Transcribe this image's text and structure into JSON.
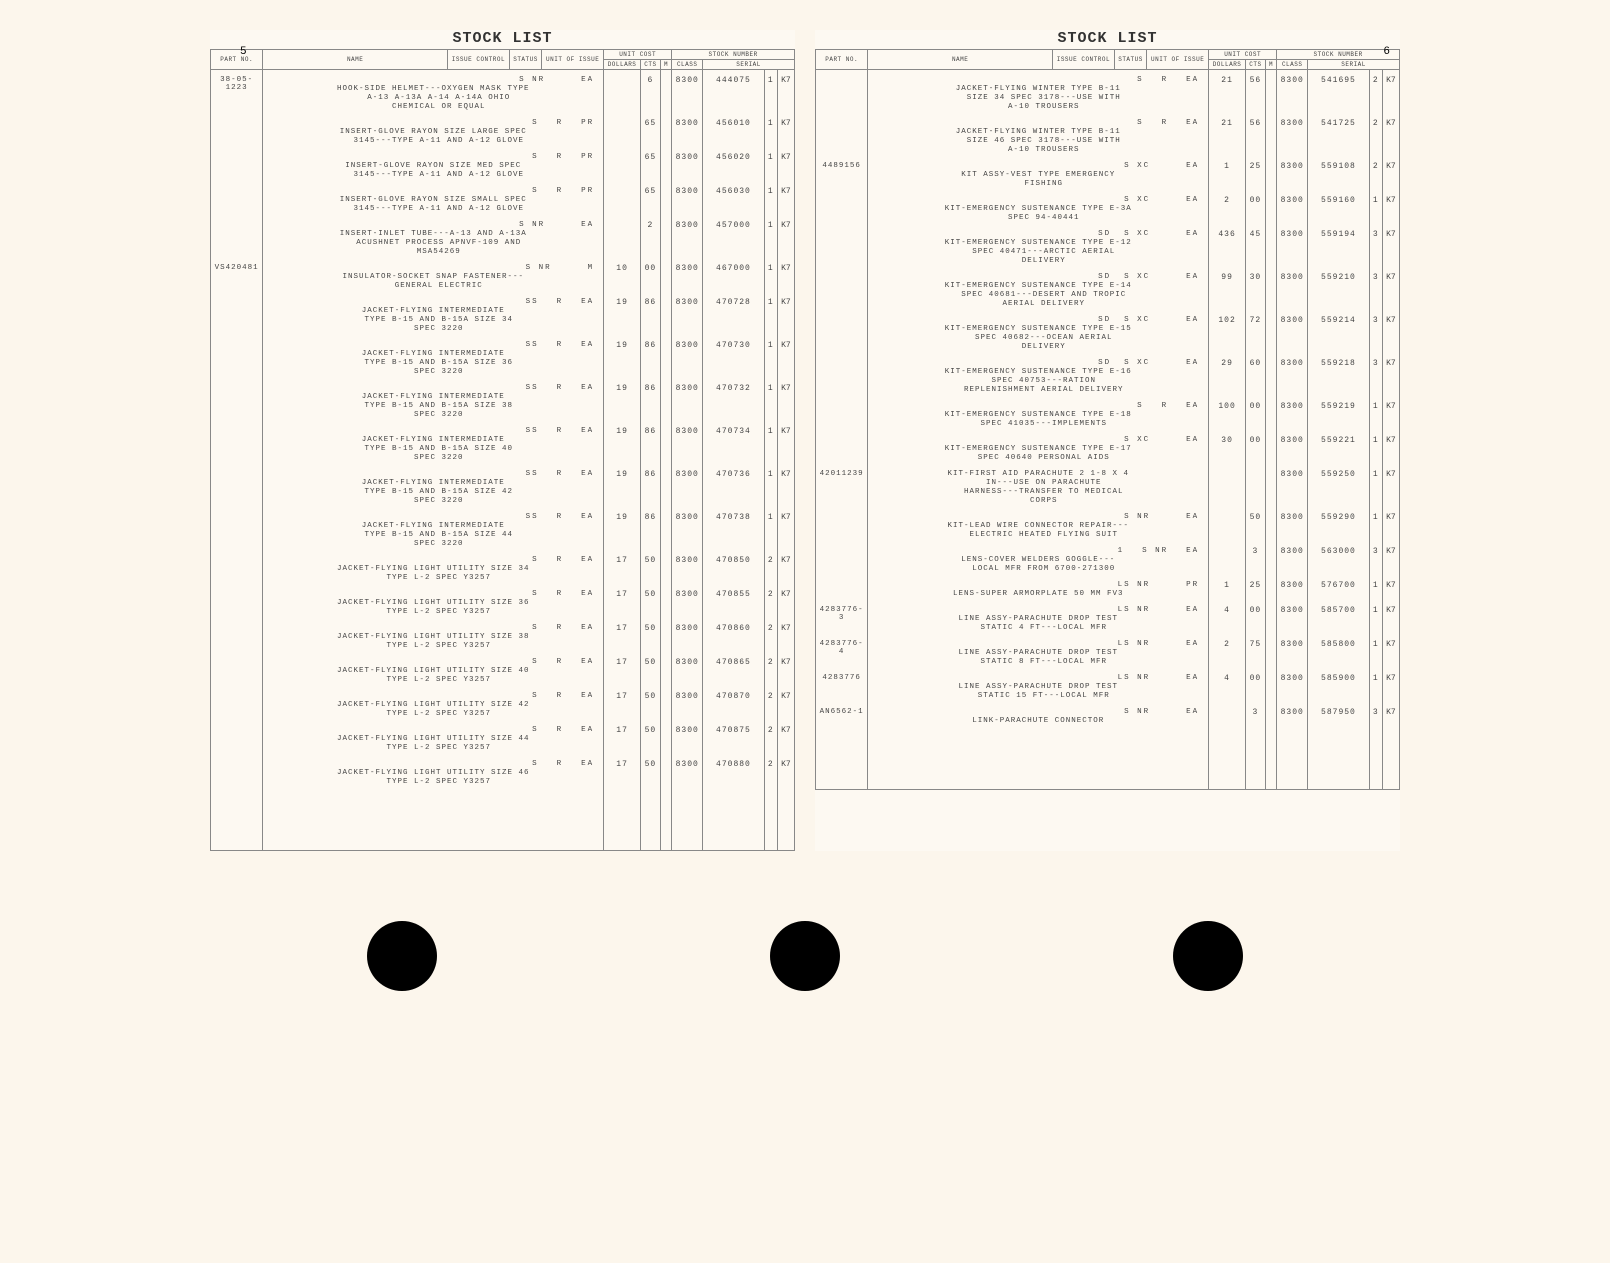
{
  "title": "STOCK LIST",
  "headers": {
    "part_no": "PART NO.",
    "name": "NAME",
    "issue": "ISSUE CONTROL",
    "status": "STATUS",
    "unit": "UNIT OF ISSUE",
    "unit_cost": "UNIT COST",
    "dollars": "DOLLARS",
    "cts": "CTS",
    "m": "M",
    "stock_number": "STOCK NUMBER",
    "class": "CLASS",
    "serial": "SERIAL"
  },
  "pages": [
    {
      "num": "5",
      "num_side": "left",
      "rows": [
        {
          "part": "38-05-1223",
          "codes": [
            "S NR",
            "",
            "EA"
          ],
          "name": "HOOK-SIDE HELMET---OXYGEN MASK TYPE\n  A-13 A-13A A-14 A-14A OHIO\n  CHEMICAL OR EQUAL",
          "dol": "",
          "cts": "6",
          "class": "8300",
          "serial": "444075",
          "x1": "1",
          "x2": "K7"
        },
        {
          "part": "",
          "codes": [
            "S",
            "R",
            "PR"
          ],
          "name": "INSERT-GLOVE RAYON SIZE LARGE SPEC\n  3145---TYPE A-11 AND A-12 GLOVE",
          "dol": "",
          "cts": "65",
          "class": "8300",
          "serial": "456010",
          "x1": "1",
          "x2": "K7"
        },
        {
          "part": "",
          "codes": [
            "S",
            "R",
            "PR"
          ],
          "name": "INSERT-GLOVE RAYON SIZE MED SPEC\n  3145---TYPE A-11 AND A-12 GLOVE",
          "dol": "",
          "cts": "65",
          "class": "8300",
          "serial": "456020",
          "x1": "1",
          "x2": "K7"
        },
        {
          "part": "",
          "codes": [
            "S",
            "R",
            "PR"
          ],
          "name": "INSERT-GLOVE RAYON SIZE SMALL SPEC\n  3145---TYPE A-11 AND A-12 GLOVE",
          "dol": "",
          "cts": "65",
          "class": "8300",
          "serial": "456030",
          "x1": "1",
          "x2": "K7"
        },
        {
          "part": "",
          "codes": [
            "S NR",
            "",
            "EA"
          ],
          "name": "INSERT-INLET TUBE---A-13 AND A-13A\n  ACUSHNET PROCESS APNVF-109 AND\n  MSA54269",
          "dol": "",
          "cts": "2",
          "class": "8300",
          "serial": "457000",
          "x1": "1",
          "x2": "K7"
        },
        {
          "part": "VS420481",
          "codes": [
            "S NR",
            "",
            "M"
          ],
          "name": "INSULATOR-SOCKET SNAP FASTENER---\n  GENERAL ELECTRIC",
          "dol": "10",
          "cts": "00",
          "class": "8300",
          "serial": "467000",
          "x1": "1",
          "x2": "K7"
        },
        {
          "part": "",
          "codes": [
            "SS",
            "R",
            "EA"
          ],
          "name": "JACKET-FLYING INTERMEDIATE\n  TYPE B-15 AND B-15A SIZE 34\n  SPEC 3220",
          "dol": "19",
          "cts": "86",
          "class": "8300",
          "serial": "470728",
          "x1": "1",
          "x2": "K7"
        },
        {
          "part": "",
          "codes": [
            "SS",
            "R",
            "EA"
          ],
          "name": "JACKET-FLYING INTERMEDIATE\n  TYPE B-15 AND B-15A SIZE 36\n  SPEC 3220",
          "dol": "19",
          "cts": "86",
          "class": "8300",
          "serial": "470730",
          "x1": "1",
          "x2": "K7"
        },
        {
          "part": "",
          "codes": [
            "SS",
            "R",
            "EA"
          ],
          "name": "JACKET-FLYING INTERMEDIATE\n  TYPE B-15 AND B-15A SIZE 38\n  SPEC 3220",
          "dol": "19",
          "cts": "86",
          "class": "8300",
          "serial": "470732",
          "x1": "1",
          "x2": "K7"
        },
        {
          "part": "",
          "codes": [
            "SS",
            "R",
            "EA"
          ],
          "name": "JACKET-FLYING INTERMEDIATE\n  TYPE B-15 AND B-15A SIZE 40\n  SPEC 3220",
          "dol": "19",
          "cts": "86",
          "class": "8300",
          "serial": "470734",
          "x1": "1",
          "x2": "K7"
        },
        {
          "part": "",
          "codes": [
            "SS",
            "R",
            "EA"
          ],
          "name": "JACKET-FLYING INTERMEDIATE\n  TYPE B-15 AND B-15A SIZE 42\n  SPEC 3220",
          "dol": "19",
          "cts": "86",
          "class": "8300",
          "serial": "470736",
          "x1": "1",
          "x2": "K7"
        },
        {
          "part": "",
          "codes": [
            "SS",
            "R",
            "EA"
          ],
          "name": "JACKET-FLYING INTERMEDIATE\n  TYPE B-15 AND B-15A SIZE 44\n  SPEC 3220",
          "dol": "19",
          "cts": "86",
          "class": "8300",
          "serial": "470738",
          "x1": "1",
          "x2": "K7"
        },
        {
          "part": "",
          "codes": [
            "S",
            "R",
            "EA"
          ],
          "name": "JACKET-FLYING LIGHT UTILITY SIZE 34\n  TYPE L-2 SPEC Y3257",
          "dol": "17",
          "cts": "50",
          "class": "8300",
          "serial": "470850",
          "x1": "2",
          "x2": "K7"
        },
        {
          "part": "",
          "codes": [
            "S",
            "R",
            "EA"
          ],
          "name": "JACKET-FLYING LIGHT UTILITY SIZE 36\n  TYPE L-2 SPEC Y3257",
          "dol": "17",
          "cts": "50",
          "class": "8300",
          "serial": "470855",
          "x1": "2",
          "x2": "K7"
        },
        {
          "part": "",
          "codes": [
            "S",
            "R",
            "EA"
          ],
          "name": "JACKET-FLYING LIGHT UTILITY SIZE 38\n  TYPE L-2 SPEC Y3257",
          "dol": "17",
          "cts": "50",
          "class": "8300",
          "serial": "470860",
          "x1": "2",
          "x2": "K7"
        },
        {
          "part": "",
          "codes": [
            "S",
            "R",
            "EA"
          ],
          "name": "JACKET-FLYING LIGHT UTILITY SIZE 40\n  TYPE L-2 SPEC Y3257",
          "dol": "17",
          "cts": "50",
          "class": "8300",
          "serial": "470865",
          "x1": "2",
          "x2": "K7"
        },
        {
          "part": "",
          "codes": [
            "S",
            "R",
            "EA"
          ],
          "name": "JACKET-FLYING LIGHT UTILITY SIZE 42\n  TYPE L-2 SPEC Y3257",
          "dol": "17",
          "cts": "50",
          "class": "8300",
          "serial": "470870",
          "x1": "2",
          "x2": "K7"
        },
        {
          "part": "",
          "codes": [
            "S",
            "R",
            "EA"
          ],
          "name": "JACKET-FLYING LIGHT UTILITY SIZE 44\n  TYPE L-2 SPEC Y3257",
          "dol": "17",
          "cts": "50",
          "class": "8300",
          "serial": "470875",
          "x1": "2",
          "x2": "K7"
        },
        {
          "part": "",
          "codes": [
            "S",
            "R",
            "EA"
          ],
          "name": "JACKET-FLYING LIGHT UTILITY SIZE 46\n  TYPE L-2 SPEC Y3257",
          "dol": "17",
          "cts": "50",
          "class": "8300",
          "serial": "470880",
          "x1": "2",
          "x2": "K7"
        }
      ]
    },
    {
      "num": "6",
      "num_side": "right",
      "rows": [
        {
          "part": "",
          "codes": [
            "S",
            "R",
            "EA"
          ],
          "name": "JACKET-FLYING WINTER TYPE B-11\n  SIZE 34 SPEC 3178---USE WITH\n  A-10 TROUSERS",
          "dol": "21",
          "cts": "56",
          "class": "8300",
          "serial": "541695",
          "x1": "2",
          "x2": "K7"
        },
        {
          "part": "",
          "codes": [
            "S",
            "R",
            "EA"
          ],
          "name": "JACKET-FLYING WINTER TYPE B-11\n  SIZE 46 SPEC 3178---USE WITH\n  A-10 TROUSERS",
          "dol": "21",
          "cts": "56",
          "class": "8300",
          "serial": "541725",
          "x1": "2",
          "x2": "K7"
        },
        {
          "part": "4489156",
          "codes": [
            "S XC",
            "",
            "EA"
          ],
          "name": "KIT ASSY-VEST TYPE EMERGENCY\n  FISHING",
          "dol": "1",
          "cts": "25",
          "class": "8300",
          "serial": "559108",
          "x1": "2",
          "x2": "K7"
        },
        {
          "part": "",
          "codes": [
            "S XC",
            "",
            "EA"
          ],
          "name": "KIT-EMERGENCY SUSTENANCE TYPE E-3A\n  SPEC 94-40441",
          "dol": "2",
          "cts": "00",
          "class": "8300",
          "serial": "559160",
          "x1": "1",
          "x2": "K7"
        },
        {
          "part": "",
          "codes": [
            "SD  S XC",
            "",
            "EA"
          ],
          "name": "KIT-EMERGENCY SUSTENANCE TYPE E-12\n  SPEC 40471---ARCTIC AERIAL\n  DELIVERY",
          "dol": "436",
          "cts": "45",
          "class": "8300",
          "serial": "559194",
          "x1": "3",
          "x2": "K7"
        },
        {
          "part": "",
          "codes": [
            "SD  S XC",
            "",
            "EA"
          ],
          "name": "KIT-EMERGENCY SUSTENANCE TYPE E-14\n  SPEC 40681---DESERT AND TROPIC\n  AERIAL DELIVERY",
          "dol": "99",
          "cts": "30",
          "class": "8300",
          "serial": "559210",
          "x1": "3",
          "x2": "K7"
        },
        {
          "part": "",
          "codes": [
            "SD  S XC",
            "",
            "EA"
          ],
          "name": "KIT-EMERGENCY SUSTENANCE TYPE E-15\n  SPEC 40682---OCEAN AERIAL\n  DELIVERY",
          "dol": "102",
          "cts": "72",
          "class": "8300",
          "serial": "559214",
          "x1": "3",
          "x2": "K7"
        },
        {
          "part": "",
          "codes": [
            "SD  S XC",
            "",
            "EA"
          ],
          "name": "KIT-EMERGENCY SUSTENANCE TYPE E-16\n  SPEC 40753---RATION\n  REPLENISHMENT AERIAL DELIVERY",
          "dol": "29",
          "cts": "60",
          "class": "8300",
          "serial": "559218",
          "x1": "3",
          "x2": "K7"
        },
        {
          "part": "",
          "codes": [
            "S",
            "R",
            "EA"
          ],
          "name": "KIT-EMERGENCY SUSTENANCE TYPE E-18\n  SPEC 41035---IMPLEMENTS",
          "dol": "100",
          "cts": "00",
          "class": "8300",
          "serial": "559219",
          "x1": "1",
          "x2": "K7"
        },
        {
          "part": "",
          "codes": [
            "S XC",
            "",
            "EA"
          ],
          "name": "KIT-EMERGENCY SUSTENANCE TYPE E-17\n  SPEC 40640 PERSONAL AIDS",
          "dol": "30",
          "cts": "00",
          "class": "8300",
          "serial": "559221",
          "x1": "1",
          "x2": "K7"
        },
        {
          "part": "42011239",
          "codes": [
            "",
            "",
            ""
          ],
          "name": "KIT-FIRST AID PARACHUTE 2 1-8 X 4\n  IN---USE ON PARACHUTE\n  HARNESS---TRANSFER TO MEDICAL\n  CORPS",
          "dol": "",
          "cts": "",
          "class": "8300",
          "serial": "559250",
          "x1": "1",
          "x2": "K7"
        },
        {
          "part": "",
          "codes": [
            "S NR",
            "",
            "EA"
          ],
          "name": "KIT-LEAD WIRE CONNECTOR REPAIR---\n  ELECTRIC HEATED FLYING SUIT",
          "dol": "",
          "cts": "50",
          "class": "8300",
          "serial": "559290",
          "x1": "1",
          "x2": "K7"
        },
        {
          "part": "",
          "codes": [
            "1",
            "S NR",
            "EA"
          ],
          "name": "LENS-COVER WELDERS GOGGLE---\n  LOCAL MFR FROM 6700-271300",
          "dol": "",
          "cts": "3",
          "class": "8300",
          "serial": "563000",
          "x1": "3",
          "x2": "K7"
        },
        {
          "part": "",
          "codes": [
            "LS NR",
            "",
            "PR"
          ],
          "name": "LENS-SUPER ARMORPLATE 50 MM FV3",
          "dol": "1",
          "cts": "25",
          "class": "8300",
          "serial": "576700",
          "x1": "1",
          "x2": "K7"
        },
        {
          "part": "4283776-3",
          "codes": [
            "LS NR",
            "",
            "EA"
          ],
          "name": "LINE ASSY-PARACHUTE DROP TEST\n  STATIC 4 FT---LOCAL MFR",
          "dol": "4",
          "cts": "00",
          "class": "8300",
          "serial": "585700",
          "x1": "1",
          "x2": "K7"
        },
        {
          "part": "4283776-4",
          "codes": [
            "LS NR",
            "",
            "EA"
          ],
          "name": "LINE ASSY-PARACHUTE DROP TEST\n  STATIC 8 FT---LOCAL MFR",
          "dol": "2",
          "cts": "75",
          "class": "8300",
          "serial": "585800",
          "x1": "1",
          "x2": "K7"
        },
        {
          "part": "4283776",
          "codes": [
            "LS NR",
            "",
            "EA"
          ],
          "name": "LINE ASSY-PARACHUTE DROP TEST\n  STATIC 15 FT---LOCAL MFR",
          "dol": "4",
          "cts": "00",
          "class": "8300",
          "serial": "585900",
          "x1": "1",
          "x2": "K7"
        },
        {
          "part": "AN6562-1",
          "codes": [
            "S NR",
            "",
            "EA"
          ],
          "name": "LINK-PARACHUTE CONNECTOR",
          "dol": "",
          "cts": "3",
          "class": "8300",
          "serial": "587950",
          "x1": "3",
          "x2": "K7"
        }
      ]
    }
  ]
}
